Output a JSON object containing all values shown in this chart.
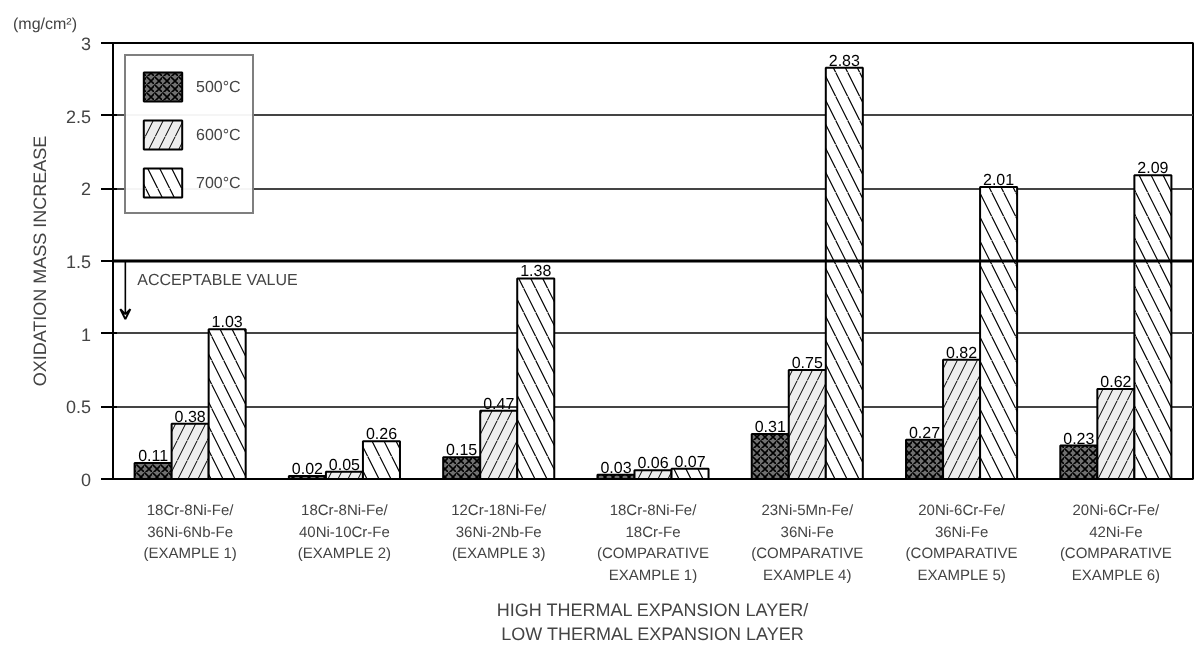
{
  "chart_data": {
    "type": "bar",
    "ylabel": "OXIDATION MASS INCREASE",
    "xlabel": "HIGH THERMAL EXPANSION LAYER/\nLOW THERMAL EXPANSION LAYER",
    "categories": [
      "18Cr-8Ni-Fe/\n36Ni-6Nb-Fe\n(EXAMPLE 1)",
      "18Cr-8Ni-Fe/\n40Ni-10Cr-Fe\n(EXAMPLE 2)",
      "12Cr-18Ni-Fe/\n36Ni-2Nb-Fe\n(EXAMPLE 3)",
      "18Cr-8Ni-Fe/\n18Cr-Fe\n(COMPARATIVE EXAMPLE 1)",
      "23Ni-5Mn-Fe/\n36Ni-Fe\n(COMPARATIVE EXAMPLE 4)",
      "20Ni-6Cr-Fe/\n36Ni-Fe\n(COMPARATIVE EXAMPLE 5)",
      "20Ni-6Cr-Fe/\n42Ni-Fe\n(COMPARATIVE EXAMPLE 6)"
    ],
    "series": [
      {
        "name": "500°C",
        "color": "#707070",
        "values": [
          0.11,
          0.02,
          0.15,
          0.03,
          0.31,
          0.27,
          0.23
        ]
      },
      {
        "name": "600°C",
        "color": "#eeeeee",
        "values": [
          0.38,
          0.05,
          0.47,
          0.06,
          0.75,
          0.82,
          0.62
        ]
      },
      {
        "name": "700°C",
        "color": "#ffffff",
        "values": [
          1.03,
          0.26,
          1.38,
          0.07,
          2.83,
          2.01,
          2.09
        ]
      }
    ],
    "ylim": [
      0,
      3
    ],
    "yticks": [
      0,
      0.5,
      1,
      1.5,
      2,
      2.5,
      3
    ],
    "grid": "y",
    "legend": "top left",
    "data_labels": true,
    "ref_lines": [
      {
        "axis": "y",
        "value": 1.5,
        "label": "ACCEPTABLE VALUE"
      }
    ],
    "annotations": [
      "(mg/cm²)"
    ]
  }
}
